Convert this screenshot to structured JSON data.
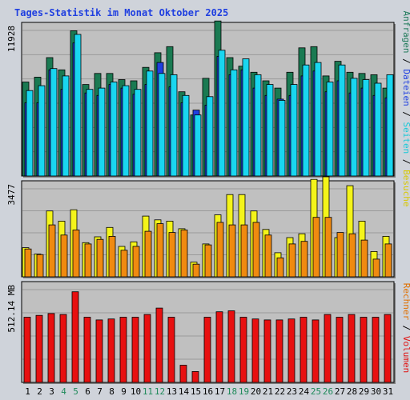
{
  "title": "Tages-Statistik im Monat Oktober 2025",
  "right_labels": {
    "top": [
      {
        "text": "Anfragen",
        "color": "#1f7a5a"
      },
      {
        "text": " / ",
        "color": "#000000"
      },
      {
        "text": "Dateien",
        "color": "#1f3fe0"
      },
      {
        "text": " / ",
        "color": "#000000"
      },
      {
        "text": "Seiten",
        "color": "#19c9d8"
      },
      {
        "text": " / ",
        "color": "#000000"
      },
      {
        "text": "Besuche",
        "color": "#d8c800"
      }
    ],
    "bottom": [
      {
        "text": "Rechner",
        "color": "#e07000"
      },
      {
        "text": " / ",
        "color": "#000000"
      },
      {
        "text": "Volumen",
        "color": "#e01010"
      }
    ]
  },
  "colors": {
    "anfragen": "#1a7a52",
    "dateien": "#1f3fe0",
    "seiten": "#19d6f0",
    "besuche": "#f4f41a",
    "rechner": "#f08a10",
    "volumen": "#e81010",
    "weekend_tick": "#1f8a5a",
    "panel_bg": "#c0c0c0"
  },
  "chart_data": [
    {
      "type": "bar",
      "panel": "requests",
      "ytick_label": "11928",
      "ymax": 11928,
      "categories": [
        "1",
        "2",
        "3",
        "4",
        "5",
        "6",
        "7",
        "8",
        "9",
        "10",
        "11",
        "12",
        "13",
        "14",
        "15",
        "16",
        "17",
        "18",
        "19",
        "20",
        "21",
        "22",
        "23",
        "24",
        "25",
        "26",
        "27",
        "28",
        "29",
        "30",
        "31"
      ],
      "weekend_days": [
        "4",
        "5",
        "11",
        "12",
        "18",
        "19",
        "25",
        "26"
      ],
      "series": [
        {
          "name": "Anfragen",
          "values": [
            7700,
            8100,
            9700,
            8700,
            11900,
            7500,
            8400,
            8400,
            7900,
            7800,
            8900,
            10100,
            10600,
            6900,
            5000,
            8000,
            12700,
            9700,
            9000,
            8500,
            7800,
            7200,
            8500,
            10500,
            10600,
            8200,
            9400,
            8500,
            8400,
            8300,
            7200
          ]
        },
        {
          "name": "Dateien",
          "values": [
            6000,
            6000,
            8700,
            7100,
            10900,
            6800,
            6600,
            7500,
            7200,
            6700,
            7500,
            9300,
            7300,
            6000,
            5400,
            5800,
            9800,
            8300,
            8700,
            7200,
            6600,
            6300,
            6600,
            8200,
            8600,
            6900,
            7800,
            6800,
            7200,
            6600,
            6400
          ]
        },
        {
          "name": "Seiten",
          "values": [
            7000,
            7400,
            8800,
            8200,
            11600,
            7100,
            7200,
            7700,
            7400,
            7100,
            8600,
            8400,
            8300,
            6600,
            5000,
            6500,
            10300,
            8700,
            9600,
            8300,
            7500,
            6200,
            7500,
            9100,
            9300,
            7700,
            9100,
            8000,
            7900,
            7600,
            8300
          ]
        }
      ]
    },
    {
      "type": "bar",
      "panel": "visits",
      "ytick_label": "3477",
      "ymax": 3477,
      "categories": [
        "1",
        "2",
        "3",
        "4",
        "5",
        "6",
        "7",
        "8",
        "9",
        "10",
        "11",
        "12",
        "13",
        "14",
        "15",
        "16",
        "17",
        "18",
        "19",
        "20",
        "21",
        "22",
        "23",
        "24",
        "25",
        "26",
        "27",
        "28",
        "29",
        "30",
        "31"
      ],
      "series": [
        {
          "name": "Besuche",
          "values": [
            1150,
            900,
            2600,
            2200,
            2650,
            1350,
            1580,
            1950,
            1200,
            1380,
            2400,
            2250,
            2200,
            1900,
            580,
            1300,
            2450,
            3250,
            3250,
            2600,
            1870,
            950,
            1550,
            1700,
            3850,
            3950,
            1550,
            3600,
            2200,
            1000,
            1600
          ]
        },
        {
          "name": "Rechner",
          "values": [
            1100,
            880,
            2050,
            1650,
            1850,
            1300,
            1480,
            1600,
            1050,
            1200,
            1800,
            2100,
            1750,
            1850,
            500,
            1260,
            2150,
            2050,
            2050,
            2150,
            1650,
            750,
            1300,
            1400,
            2350,
            2350,
            1750,
            1700,
            1450,
            700,
            1300
          ]
        }
      ]
    },
    {
      "type": "bar",
      "panel": "volume",
      "ytick_label": "512.14 MB",
      "ymax": 512.14,
      "categories": [
        "1",
        "2",
        "3",
        "4",
        "5",
        "6",
        "7",
        "8",
        "9",
        "10",
        "11",
        "12",
        "13",
        "14",
        "15",
        "16",
        "17",
        "18",
        "19",
        "20",
        "21",
        "22",
        "23",
        "24",
        "25",
        "26",
        "27",
        "28",
        "29",
        "30",
        "31"
      ],
      "series": [
        {
          "name": "Volumen",
          "values": [
            360,
            370,
            380,
            375,
            500,
            360,
            345,
            350,
            360,
            360,
            375,
            410,
            360,
            95,
            60,
            360,
            390,
            395,
            360,
            350,
            345,
            345,
            350,
            360,
            345,
            375,
            360,
            375,
            360,
            360,
            375
          ]
        }
      ]
    }
  ]
}
